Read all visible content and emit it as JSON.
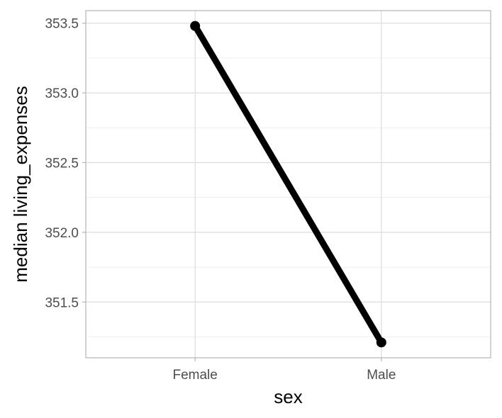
{
  "chart_data": {
    "type": "line",
    "categories": [
      "Female",
      "Male"
    ],
    "series": [
      {
        "values": [
          353.48,
          351.21
        ],
        "color": "#000000"
      }
    ],
    "xlabel": "sex",
    "ylabel": "median living_expenses",
    "ylim": [
      351.1,
      353.59
    ],
    "yticks": [
      351.5,
      352.0,
      352.5,
      353.0,
      353.5
    ],
    "ytick_labels": [
      "351.5",
      "352.0",
      "352.5",
      "353.0",
      "353.5"
    ],
    "grid": true,
    "theme": "light"
  }
}
